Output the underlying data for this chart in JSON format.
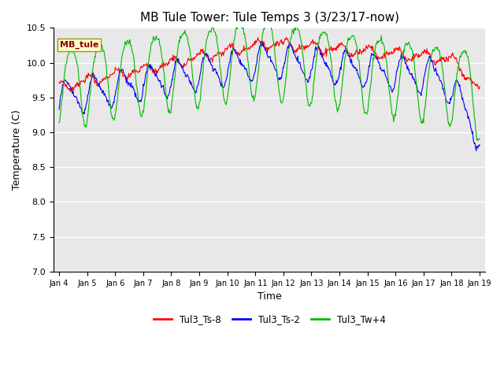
{
  "title": "MB Tule Tower: Tule Temps 3 (3/23/17-now)",
  "xlabel": "Time",
  "ylabel": "Temperature (C)",
  "ylim": [
    7.0,
    10.5
  ],
  "yticks": [
    7.0,
    7.5,
    8.0,
    8.5,
    9.0,
    9.5,
    10.0,
    10.5
  ],
  "xtick_labels": [
    "Jan 4",
    "Jan 5",
    "Jan 6",
    "Jan 7",
    "Jan 8",
    "Jan 9",
    "Jan 10",
    "Jan 11",
    "Jan 12",
    "Jan 13",
    "Jan 14",
    "Jan 15",
    "Jan 16",
    "Jan 17",
    "Jan 18",
    "Jan 19"
  ],
  "legend_labels": [
    "Tul3_Ts-8",
    "Tul3_Ts-2",
    "Tul3_Tw+4"
  ],
  "legend_colors": [
    "#ff0000",
    "#0000ff",
    "#00bb00"
  ],
  "station_label": "MB_tule",
  "bg_color": "#ffffff",
  "plot_bg_color": "#e8e8e8",
  "grid_color": "#ffffff",
  "title_fontsize": 11,
  "axis_fontsize": 9,
  "tick_fontsize": 8
}
